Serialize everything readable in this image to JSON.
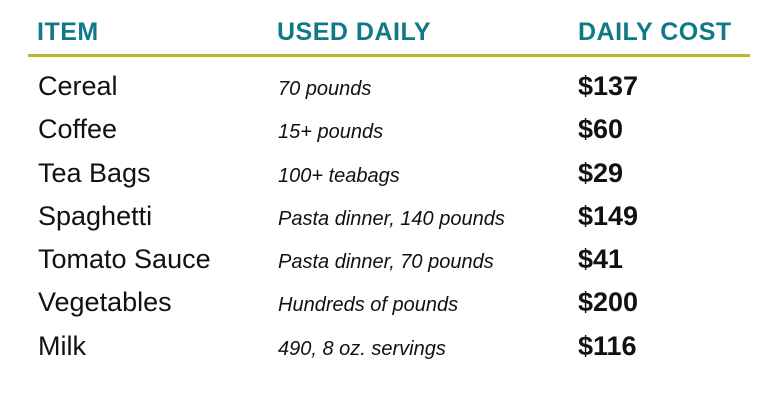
{
  "headers": {
    "item": "ITEM",
    "used_daily": "USED DAILY",
    "daily_cost": "DAILY COST"
  },
  "colors": {
    "header_text": "#0f7a86",
    "rule": "#b7b82c",
    "body_text": "#111111"
  },
  "rows": [
    {
      "item": "Cereal",
      "used_daily": "70 pounds",
      "daily_cost": "$137"
    },
    {
      "item": "Coffee",
      "used_daily": "15+ pounds",
      "daily_cost": "$60"
    },
    {
      "item": "Tea Bags",
      "used_daily": "100+ teabags",
      "daily_cost": "$29"
    },
    {
      "item": "Spaghetti",
      "used_daily": "Pasta dinner, 140 pounds",
      "daily_cost": "$149"
    },
    {
      "item": "Tomato Sauce",
      "used_daily": "Pasta dinner, 70 pounds",
      "daily_cost": "$41"
    },
    {
      "item": "Vegetables",
      "used_daily": "Hundreds of pounds",
      "daily_cost": "$200"
    },
    {
      "item": "Milk",
      "used_daily": "490, 8 oz. servings",
      "daily_cost": "$116"
    }
  ]
}
